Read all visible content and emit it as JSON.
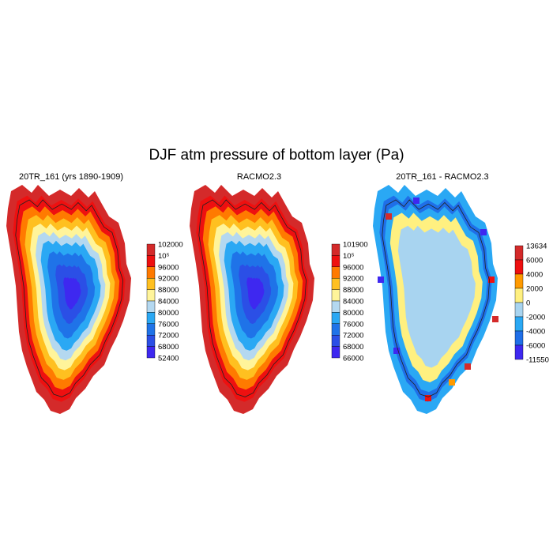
{
  "figure": {
    "title": "DJF atm pressure of bottom layer (Pa)"
  },
  "chart_data": [
    {
      "type": "heatmap",
      "title": "20TR_161 (yrs 1890-1909)",
      "colorbar": {
        "labels": [
          "102000",
          "10⁵",
          "96000",
          "92000",
          "88000",
          "84000",
          "80000",
          "76000",
          "72000",
          "68000",
          "52400"
        ],
        "colors": [
          "#d42a2a",
          "#ee1010",
          "#ff7a00",
          "#ffc020",
          "#fff49a",
          "#b4d8f0",
          "#2aa8f4",
          "#1f73e8",
          "#2b4fe6",
          "#3e28f0"
        ]
      }
    },
    {
      "type": "heatmap",
      "title": "RACMO2.3",
      "colorbar": {
        "labels": [
          "101900",
          "10⁵",
          "96000",
          "92000",
          "88000",
          "84000",
          "80000",
          "76000",
          "72000",
          "68000",
          "66000"
        ],
        "colors": [
          "#d42a2a",
          "#ee1010",
          "#ff7a00",
          "#ffc020",
          "#fff49a",
          "#b4d8f0",
          "#2aa8f4",
          "#1f73e8",
          "#2b4fe6",
          "#3e28f0"
        ]
      }
    },
    {
      "type": "heatmap",
      "title": "20TR_161 - RACMO2.3",
      "colorbar": {
        "labels": [
          "13634",
          "6000",
          "4000",
          "2000",
          "0",
          "-2000",
          "-4000",
          "-6000",
          "-11550"
        ],
        "colors": [
          "#d42a2a",
          "#ee1010",
          "#ff9a00",
          "#fff080",
          "#a8d4f0",
          "#2aa8f4",
          "#1f6fe8",
          "#3e28f0"
        ]
      }
    }
  ]
}
